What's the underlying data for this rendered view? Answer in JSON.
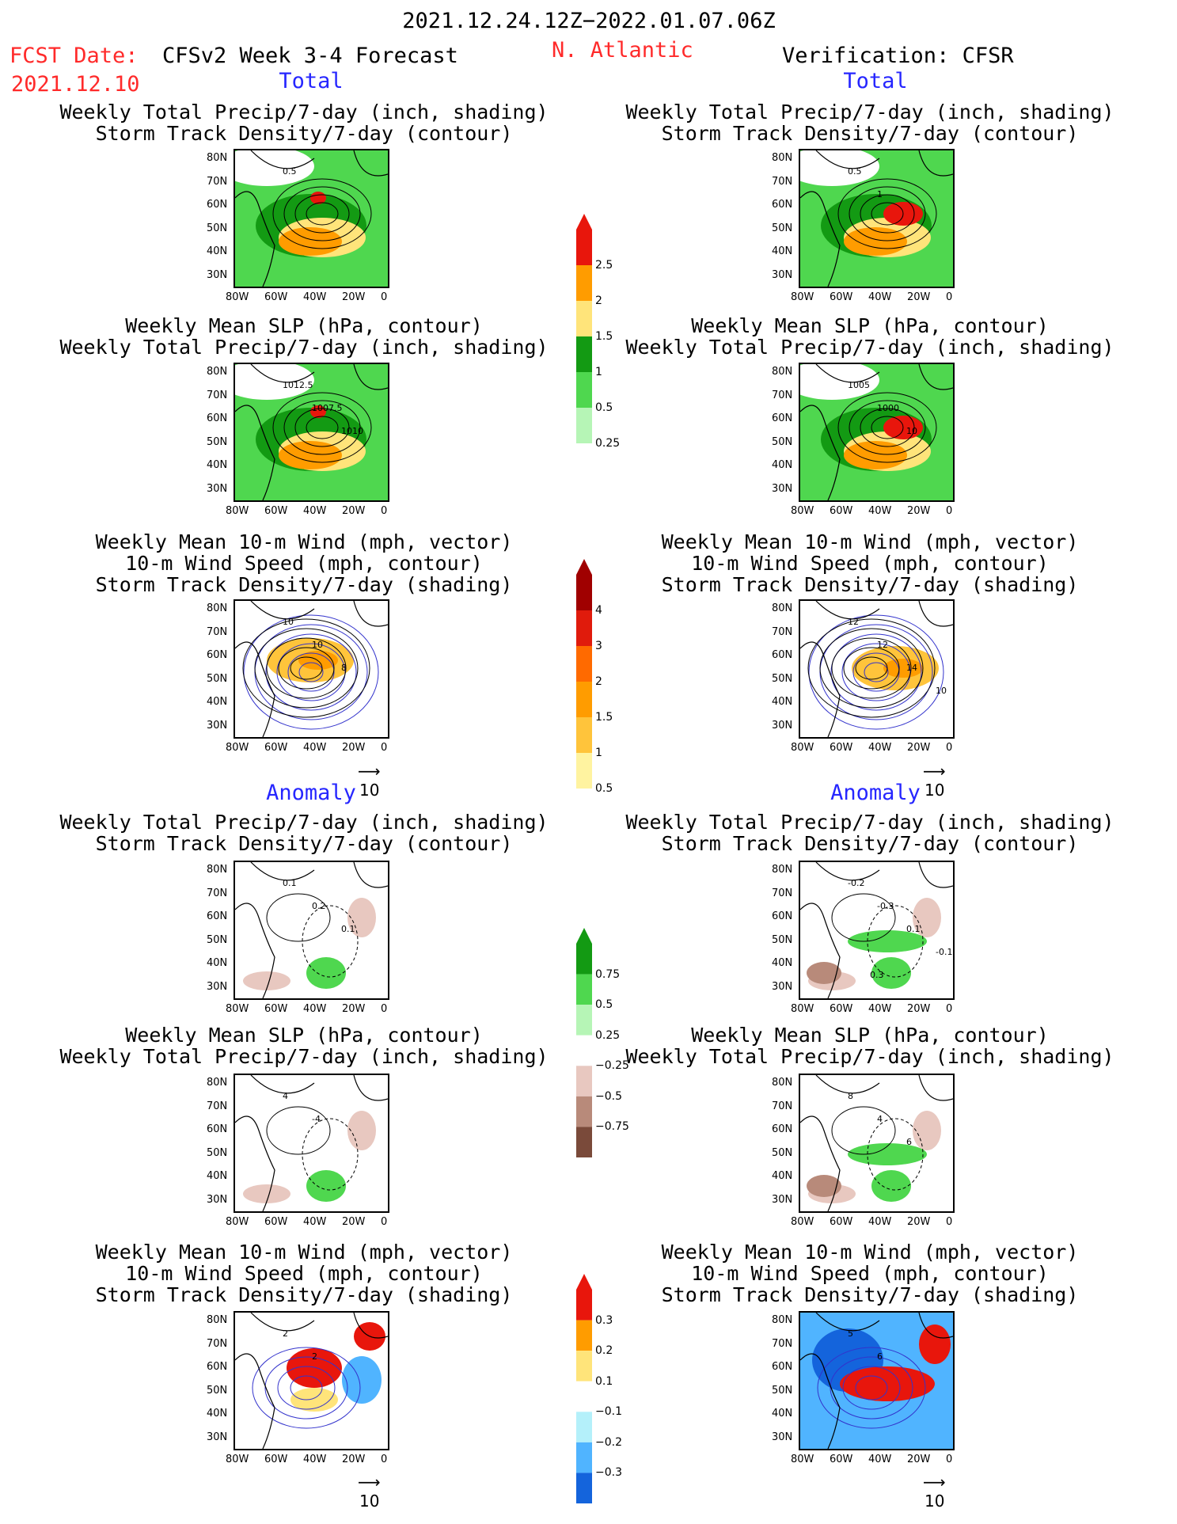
{
  "header": {
    "period": "2021.12.24.12Z−2022.01.07.06Z",
    "fcst_label": "FCST Date:",
    "fcst_date": "2021.12.10",
    "model": "CFSv2 Week 3-4 Forecast",
    "region": "N. Atlantic",
    "verification": "Verification: CFSR"
  },
  "sections": {
    "total": "Total",
    "anomaly": "Anomaly"
  },
  "titles": {
    "precip_storm": "Weekly Total Precip/7-day (inch, shading)\nStorm Track Density/7-day (contour)",
    "slp_precip": "Weekly Mean SLP (hPa, contour)\nWeekly Total Precip/7-day (inch, shading)",
    "wind": "Weekly Mean 10-m Wind (mph, vector)\n10-m Wind Speed (mph, contour)\nStorm Track Density/7-day (shading)"
  },
  "axes": {
    "lat": [
      "80N",
      "70N",
      "60N",
      "50N",
      "40N",
      "30N"
    ],
    "lon": [
      "80W",
      "60W",
      "40W",
      "20W",
      "0"
    ]
  },
  "vector_ref": "10",
  "colorbars": {
    "precip_total": {
      "labels": [
        "2.5",
        "2",
        "1.5",
        "1",
        "0.5",
        "0.25"
      ],
      "colors": [
        "#e8160c",
        "#ff9c00",
        "#ffe47a",
        "#139a13",
        "#4fd74f",
        "#b6f5b6"
      ]
    },
    "storm_total": {
      "labels": [
        "4",
        "3",
        "2",
        "1.5",
        "1",
        "0.5"
      ],
      "colors": [
        "#a00000",
        "#e01b0c",
        "#ff6a00",
        "#ff9c00",
        "#ffc43b",
        "#fff3a0"
      ]
    },
    "precip_anom": {
      "labels": [
        "0.75",
        "0.5",
        "0.25",
        "−0.25",
        "−0.5",
        "−0.75"
      ],
      "colors": [
        "#139a13",
        "#4fd74f",
        "#b6f5b6",
        "#ffffff",
        "#e8c8c0",
        "#b88a7a",
        "#7a4a3a"
      ]
    },
    "storm_anom": {
      "labels": [
        "0.3",
        "0.2",
        "0.1",
        "−0.1",
        "−0.2",
        "−0.3"
      ],
      "colors": [
        "#e8160c",
        "#ff9c00",
        "#ffe47a",
        "#ffffff",
        "#b4f0fa",
        "#50b4ff",
        "#1464dc"
      ]
    }
  },
  "maps": [
    {
      "col": "forecast",
      "panel": "precip_storm_total",
      "contour_labels": [
        "0.5"
      ]
    },
    {
      "col": "forecast",
      "panel": "slp_precip_total",
      "contour_labels": [
        "1012.5",
        "1007.5",
        "1010"
      ]
    },
    {
      "col": "forecast",
      "panel": "wind_total",
      "contour_labels": [
        "10",
        "10",
        "8"
      ]
    },
    {
      "col": "forecast",
      "panel": "precip_storm_anom",
      "contour_labels": [
        "0.1",
        "0.2",
        "0.1"
      ]
    },
    {
      "col": "forecast",
      "panel": "slp_precip_anom",
      "contour_labels": [
        "4",
        "-4"
      ]
    },
    {
      "col": "forecast",
      "panel": "wind_anom",
      "contour_labels": [
        "2",
        "2"
      ]
    },
    {
      "col": "verification",
      "panel": "precip_storm_total",
      "contour_labels": [
        "0.5",
        "1"
      ]
    },
    {
      "col": "verification",
      "panel": "slp_precip_total",
      "contour_labels": [
        "1005",
        "1000",
        "10"
      ]
    },
    {
      "col": "verification",
      "panel": "wind_total",
      "contour_labels": [
        "12",
        "12",
        "14",
        "10"
      ]
    },
    {
      "col": "verification",
      "panel": "precip_storm_anom",
      "contour_labels": [
        "-0.2",
        "-0.3",
        "0.1",
        "-0.1",
        "0.3"
      ]
    },
    {
      "col": "verification",
      "panel": "slp_precip_anom",
      "contour_labels": [
        "8",
        "4",
        "6"
      ]
    },
    {
      "col": "verification",
      "panel": "wind_anom",
      "contour_labels": [
        "5",
        "6"
      ]
    }
  ]
}
